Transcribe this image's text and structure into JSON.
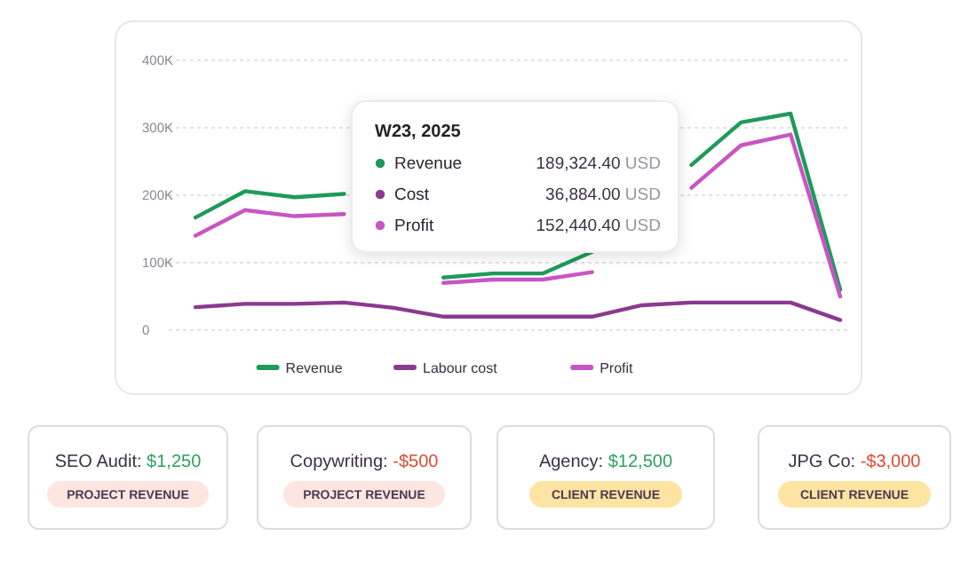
{
  "chart_data": [
    {
      "type": "line",
      "categories": [
        null,
        null,
        null,
        null,
        null,
        null,
        null,
        null,
        null,
        null,
        null,
        null,
        null,
        null
      ],
      "series": [
        {
          "name": "Revenue",
          "color": "#1f9a5b",
          "values": [
            167000,
            206000,
            197000,
            202000,
            null,
            78000,
            84000,
            84000,
            116000,
            null,
            245000,
            308000,
            321000,
            60000
          ]
        },
        {
          "name": "Labour cost",
          "color": "#8b3a8f",
          "values": [
            34000,
            39000,
            39000,
            41000,
            33000,
            20000,
            20000,
            20000,
            20000,
            36884,
            41000,
            41000,
            41000,
            15000
          ]
        },
        {
          "name": "Profit",
          "color": "#c855c4",
          "values": [
            140000,
            178000,
            169000,
            172000,
            null,
            70000,
            75000,
            75000,
            86000,
            null,
            211000,
            274000,
            290000,
            50000
          ]
        }
      ],
      "ylim": [
        0,
        400000
      ],
      "yticks": [
        0,
        {
          "value": 100000,
          "label": "100K"
        },
        {
          "value": 200000,
          "label": "200K"
        },
        {
          "value": 300000,
          "label": "300K"
        },
        {
          "value": 400000,
          "label": "400K"
        }
      ],
      "grid": "y",
      "legend": "bottom",
      "marker": "none",
      "line_style": "solid",
      "tick_labels": "y",
      "annotations": [
        "W23, 2025",
        "Revenue",
        "189,324.40 USD",
        "Cost",
        "36,884.00 USD",
        "Profit",
        "152,440.40 USD"
      ]
    },
    {
      "type": "other",
      "annotations": [
        "SEO Audit:",
        "$1,250",
        "PROJECT REVENUE",
        "Copywriting:",
        "-$500",
        "PROJECT REVENUE",
        "Agency:",
        "$12,500",
        "CLIENT REVENUE",
        "JPG Co:",
        "-$3,000",
        "CLIENT REVENUE"
      ]
    }
  ]
}
